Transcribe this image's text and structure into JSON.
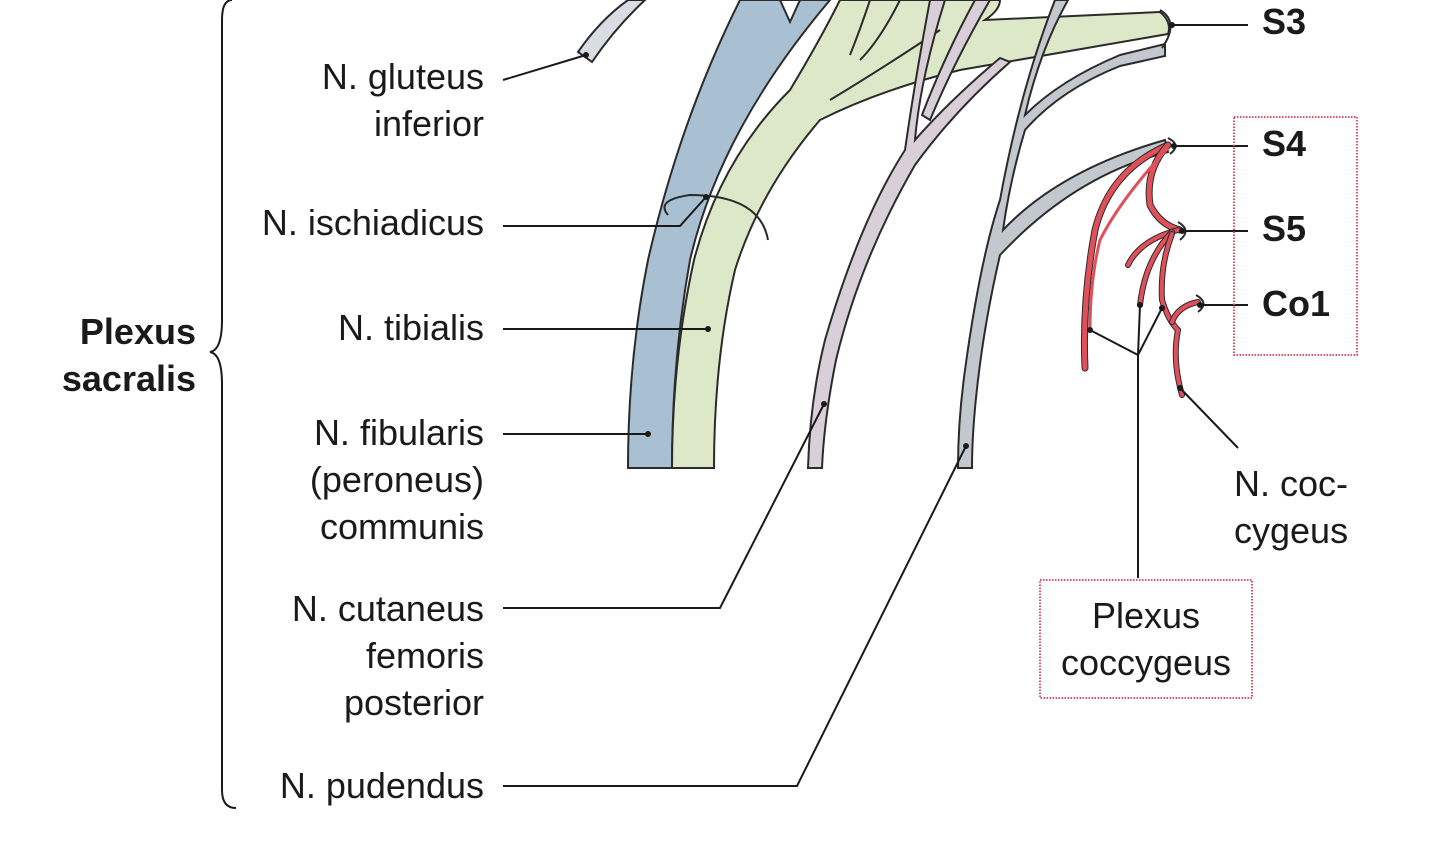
{
  "group_label": [
    "Plexus",
    "sacralis"
  ],
  "nerves": {
    "gluteus_inferior": [
      "N. gluteus",
      "inferior"
    ],
    "ischiadicus": [
      "N. ischiadicus"
    ],
    "tibialis": [
      "N. tibialis"
    ],
    "fibularis": [
      "N. fibularis",
      "(peroneus)",
      "communis"
    ],
    "cutaneus": [
      "N. cutaneus",
      "femoris",
      "posterior"
    ],
    "pudendus": [
      "N. pudendus"
    ],
    "coccygeus": [
      "N. coc-",
      "cygeus"
    ]
  },
  "segments": {
    "s3": "S3",
    "s4": "S4",
    "s5": "S5",
    "co1": "Co1"
  },
  "plexus_coccygeus": [
    "Plexus",
    "coccygeus"
  ],
  "colors": {
    "ischiadicus_blue": "#a9bfd2",
    "tibialis_green": "#dde8c8",
    "cutaneus_mauve": "#d9cfd8",
    "pudendus_gray": "#c3c8cf",
    "gluteus_gray": "#d7dde2",
    "coccygeal_red": "#e0505a",
    "highlight_box": "#e05060",
    "outline": "#2b2b2b"
  }
}
